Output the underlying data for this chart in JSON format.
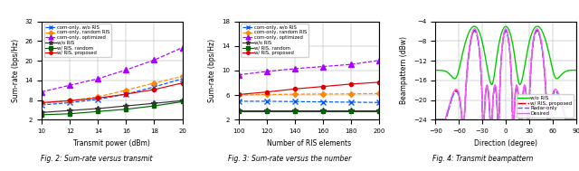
{
  "fig2": {
    "xlabel": "Transmit power (dBm)",
    "ylabel": "Sum-rate (bps/Hz)",
    "x": [
      10,
      12,
      14,
      16,
      18,
      20
    ],
    "com_only_wo_ris": [
      6.5,
      7.2,
      8.2,
      9.8,
      12.0,
      14.5
    ],
    "com_only_random": [
      7.0,
      7.8,
      9.0,
      11.0,
      13.2,
      15.2
    ],
    "com_only_optimized": [
      10.5,
      12.5,
      14.5,
      17.2,
      20.2,
      24.0
    ],
    "wo_ris": [
      4.2,
      4.8,
      5.4,
      6.2,
      7.0,
      7.8
    ],
    "w_ris_random": [
      3.5,
      3.8,
      4.5,
      5.2,
      6.2,
      7.5
    ],
    "w_ris_proposed": [
      7.2,
      7.8,
      8.6,
      9.8,
      11.2,
      13.2
    ],
    "ylim": [
      2,
      32
    ],
    "yticks": [
      2,
      8,
      14,
      20,
      26,
      32
    ],
    "caption": "Fig. 2: Sum-rate versus transmit"
  },
  "fig3": {
    "xlabel": "Number of RIS elements",
    "ylabel": "Sum-rate (bps/Hz)",
    "x": [
      100,
      120,
      140,
      160,
      180,
      200
    ],
    "com_only_wo_ris": [
      5.0,
      5.0,
      4.95,
      4.9,
      4.85,
      4.8
    ],
    "com_only_random": [
      6.0,
      6.1,
      6.15,
      6.18,
      6.2,
      6.25
    ],
    "com_only_optimized": [
      9.3,
      9.85,
      10.3,
      10.65,
      11.0,
      11.65
    ],
    "wo_ris": [
      3.5,
      3.5,
      3.5,
      3.5,
      3.5,
      3.5
    ],
    "w_ris_random": [
      3.4,
      3.4,
      3.4,
      3.4,
      3.4,
      3.4
    ],
    "w_ris_proposed": [
      6.1,
      6.5,
      7.0,
      7.4,
      7.8,
      8.1
    ],
    "ylim": [
      2,
      18
    ],
    "yticks": [
      2,
      6,
      10,
      14,
      18
    ],
    "caption": "Fig. 3: Sum-rate versus the number"
  },
  "fig4": {
    "xlabel": "Direction (degree)",
    "ylabel": "Beampattern (dBw)",
    "ylim": [
      -24,
      -4
    ],
    "yticks": [
      -24,
      -20,
      -16,
      -12,
      -8,
      -4
    ],
    "xticks": [
      -90,
      -60,
      -30,
      0,
      30,
      60,
      90
    ],
    "steer_angles": [
      -40,
      0,
      40
    ],
    "caption": "Fig. 4: Transmit beampattern"
  },
  "colors": {
    "com_only_wo_ris": "#0055FF",
    "com_only_random": "#FF8800",
    "com_only_optimized": "#AA00FF",
    "wo_ris": "#333333",
    "w_ris_random": "#006600",
    "w_ris_proposed": "#DD0000",
    "fig4_wo_ris": "#00CC00",
    "fig4_proposed": "#CC0000",
    "fig4_radar": "#4466FF",
    "fig4_desired": "#FF55FF"
  }
}
